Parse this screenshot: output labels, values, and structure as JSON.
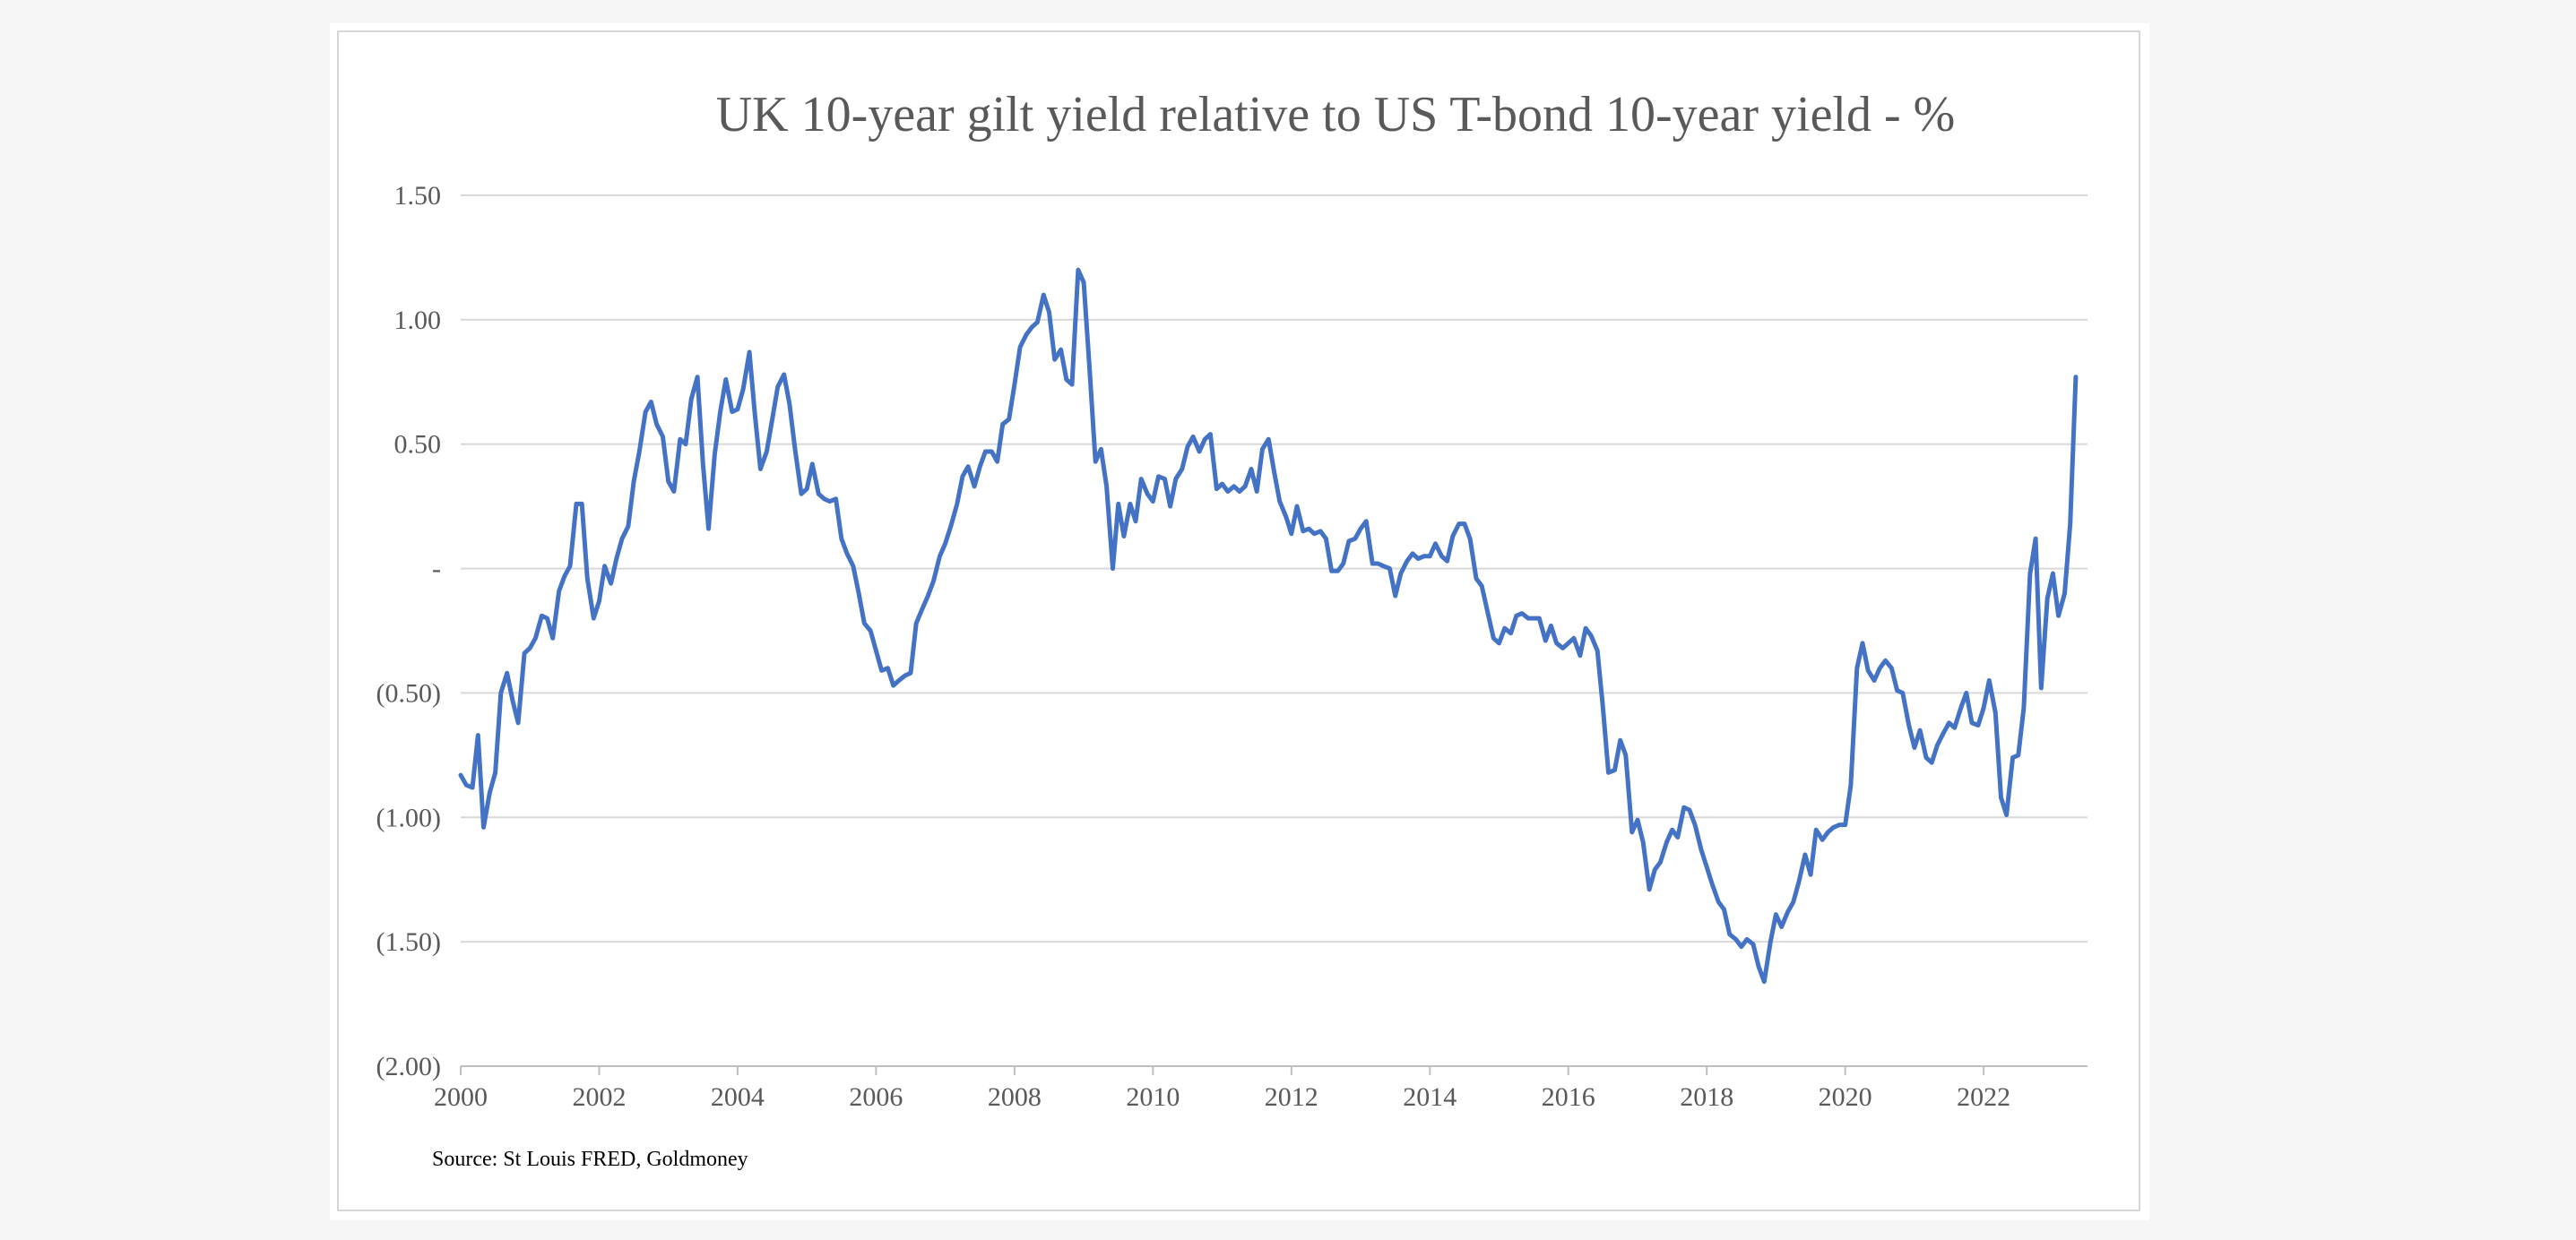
{
  "chart_data": {
    "type": "line",
    "title": "UK 10-year gilt yield relative to US T-bond 10-year yield - %",
    "xlabel": "",
    "ylabel": "",
    "source": "Source: St Louis FRED, Goldmoney",
    "xlim": [
      2000,
      2023.5
    ],
    "ylim": [
      -2.0,
      1.5
    ],
    "grid": true,
    "legend": "none",
    "y_ticks": [
      {
        "value": 1.5,
        "label": "1.50"
      },
      {
        "value": 1.0,
        "label": "1.00"
      },
      {
        "value": 0.5,
        "label": "0.50"
      },
      {
        "value": 0.0,
        "label": "-"
      },
      {
        "value": -0.5,
        "label": "(0.50)"
      },
      {
        "value": -1.0,
        "label": "(1.00)"
      },
      {
        "value": -1.5,
        "label": "(1.50)"
      },
      {
        "value": -2.0,
        "label": "(2.00)"
      }
    ],
    "x_ticks": [
      {
        "value": 2000,
        "label": "2000"
      },
      {
        "value": 2002,
        "label": "2002"
      },
      {
        "value": 2004,
        "label": "2004"
      },
      {
        "value": 2006,
        "label": "2006"
      },
      {
        "value": 2008,
        "label": "2008"
      },
      {
        "value": 2010,
        "label": "2010"
      },
      {
        "value": 2012,
        "label": "2012"
      },
      {
        "value": 2014,
        "label": "2014"
      },
      {
        "value": 2016,
        "label": "2016"
      },
      {
        "value": 2018,
        "label": "2018"
      },
      {
        "value": 2020,
        "label": "2020"
      },
      {
        "value": 2022,
        "label": "2022"
      }
    ],
    "colors": {
      "line": "#4472c4",
      "grid": "#d9d9d9",
      "axis": "#bfbfbf",
      "text": "#595959"
    },
    "series": [
      {
        "name": "",
        "points": [
          [
            2000.0,
            -0.83
          ],
          [
            2000.08,
            -0.87
          ],
          [
            2000.17,
            -0.88
          ],
          [
            2000.25,
            -0.67
          ],
          [
            2000.33,
            -1.04
          ],
          [
            2000.42,
            -0.9
          ],
          [
            2000.5,
            -0.82
          ],
          [
            2000.58,
            -0.5
          ],
          [
            2000.67,
            -0.42
          ],
          [
            2000.75,
            -0.53
          ],
          [
            2000.83,
            -0.62
          ],
          [
            2000.92,
            -0.34
          ],
          [
            2001.0,
            -0.32
          ],
          [
            2001.08,
            -0.28
          ],
          [
            2001.17,
            -0.19
          ],
          [
            2001.25,
            -0.2
          ],
          [
            2001.33,
            -0.28
          ],
          [
            2001.42,
            -0.09
          ],
          [
            2001.5,
            -0.03
          ],
          [
            2001.58,
            0.01
          ],
          [
            2001.67,
            0.26
          ],
          [
            2001.75,
            0.26
          ],
          [
            2001.83,
            -0.04
          ],
          [
            2001.92,
            -0.2
          ],
          [
            2002.0,
            -0.13
          ],
          [
            2002.08,
            0.01
          ],
          [
            2002.17,
            -0.06
          ],
          [
            2002.25,
            0.04
          ],
          [
            2002.33,
            0.12
          ],
          [
            2002.42,
            0.17
          ],
          [
            2002.5,
            0.35
          ],
          [
            2002.58,
            0.47
          ],
          [
            2002.67,
            0.63
          ],
          [
            2002.75,
            0.67
          ],
          [
            2002.83,
            0.58
          ],
          [
            2002.92,
            0.53
          ],
          [
            2003.0,
            0.35
          ],
          [
            2003.08,
            0.31
          ],
          [
            2003.17,
            0.52
          ],
          [
            2003.25,
            0.5
          ],
          [
            2003.33,
            0.68
          ],
          [
            2003.42,
            0.77
          ],
          [
            2003.5,
            0.42
          ],
          [
            2003.58,
            0.16
          ],
          [
            2003.67,
            0.46
          ],
          [
            2003.75,
            0.63
          ],
          [
            2003.83,
            0.76
          ],
          [
            2003.92,
            0.63
          ],
          [
            2004.0,
            0.64
          ],
          [
            2004.08,
            0.72
          ],
          [
            2004.17,
            0.87
          ],
          [
            2004.25,
            0.62
          ],
          [
            2004.33,
            0.4
          ],
          [
            2004.42,
            0.47
          ],
          [
            2004.5,
            0.6
          ],
          [
            2004.58,
            0.73
          ],
          [
            2004.67,
            0.78
          ],
          [
            2004.75,
            0.66
          ],
          [
            2004.83,
            0.48
          ],
          [
            2004.92,
            0.3
          ],
          [
            2005.0,
            0.32
          ],
          [
            2005.08,
            0.42
          ],
          [
            2005.17,
            0.3
          ],
          [
            2005.25,
            0.28
          ],
          [
            2005.33,
            0.27
          ],
          [
            2005.42,
            0.28
          ],
          [
            2005.5,
            0.12
          ],
          [
            2005.58,
            0.06
          ],
          [
            2005.67,
            0.01
          ],
          [
            2005.75,
            -0.1
          ],
          [
            2005.83,
            -0.22
          ],
          [
            2005.92,
            -0.25
          ],
          [
            2006.0,
            -0.33
          ],
          [
            2006.08,
            -0.41
          ],
          [
            2006.17,
            -0.4
          ],
          [
            2006.25,
            -0.47
          ],
          [
            2006.33,
            -0.45
          ],
          [
            2006.42,
            -0.43
          ],
          [
            2006.5,
            -0.42
          ],
          [
            2006.58,
            -0.22
          ],
          [
            2006.67,
            -0.16
          ],
          [
            2006.75,
            -0.11
          ],
          [
            2006.83,
            -0.05
          ],
          [
            2006.92,
            0.05
          ],
          [
            2007.0,
            0.1
          ],
          [
            2007.08,
            0.17
          ],
          [
            2007.17,
            0.26
          ],
          [
            2007.25,
            0.37
          ],
          [
            2007.33,
            0.41
          ],
          [
            2007.42,
            0.33
          ],
          [
            2007.5,
            0.41
          ],
          [
            2007.58,
            0.47
          ],
          [
            2007.67,
            0.47
          ],
          [
            2007.75,
            0.43
          ],
          [
            2007.83,
            0.58
          ],
          [
            2007.92,
            0.6
          ],
          [
            2008.0,
            0.74
          ],
          [
            2008.08,
            0.89
          ],
          [
            2008.17,
            0.94
          ],
          [
            2008.25,
            0.97
          ],
          [
            2008.33,
            0.99
          ],
          [
            2008.42,
            1.1
          ],
          [
            2008.5,
            1.03
          ],
          [
            2008.58,
            0.84
          ],
          [
            2008.67,
            0.88
          ],
          [
            2008.75,
            0.76
          ],
          [
            2008.83,
            0.74
          ],
          [
            2008.92,
            1.2
          ],
          [
            2009.0,
            1.15
          ],
          [
            2009.08,
            0.82
          ],
          [
            2009.17,
            0.43
          ],
          [
            2009.25,
            0.48
          ],
          [
            2009.33,
            0.33
          ],
          [
            2009.42,
            0.0
          ],
          [
            2009.5,
            0.26
          ],
          [
            2009.58,
            0.13
          ],
          [
            2009.67,
            0.26
          ],
          [
            2009.75,
            0.19
          ],
          [
            2009.83,
            0.36
          ],
          [
            2009.92,
            0.3
          ],
          [
            2010.0,
            0.27
          ],
          [
            2010.08,
            0.37
          ],
          [
            2010.17,
            0.36
          ],
          [
            2010.25,
            0.25
          ],
          [
            2010.33,
            0.36
          ],
          [
            2010.42,
            0.4
          ],
          [
            2010.5,
            0.49
          ],
          [
            2010.58,
            0.53
          ],
          [
            2010.67,
            0.47
          ],
          [
            2010.75,
            0.52
          ],
          [
            2010.83,
            0.54
          ],
          [
            2010.92,
            0.32
          ],
          [
            2011.0,
            0.34
          ],
          [
            2011.08,
            0.31
          ],
          [
            2011.17,
            0.33
          ],
          [
            2011.25,
            0.31
          ],
          [
            2011.33,
            0.33
          ],
          [
            2011.42,
            0.4
          ],
          [
            2011.5,
            0.31
          ],
          [
            2011.58,
            0.48
          ],
          [
            2011.67,
            0.52
          ],
          [
            2011.75,
            0.39
          ],
          [
            2011.83,
            0.27
          ],
          [
            2011.92,
            0.21
          ],
          [
            2012.0,
            0.14
          ],
          [
            2012.08,
            0.25
          ],
          [
            2012.17,
            0.15
          ],
          [
            2012.25,
            0.16
          ],
          [
            2012.33,
            0.14
          ],
          [
            2012.42,
            0.15
          ],
          [
            2012.5,
            0.12
          ],
          [
            2012.58,
            -0.01
          ],
          [
            2012.67,
            -0.01
          ],
          [
            2012.75,
            0.02
          ],
          [
            2012.83,
            0.11
          ],
          [
            2012.92,
            0.12
          ],
          [
            2013.0,
            0.16
          ],
          [
            2013.08,
            0.19
          ],
          [
            2013.17,
            0.02
          ],
          [
            2013.25,
            0.02
          ],
          [
            2013.33,
            0.01
          ],
          [
            2013.42,
            0.0
          ],
          [
            2013.5,
            -0.11
          ],
          [
            2013.58,
            -0.02
          ],
          [
            2013.67,
            0.03
          ],
          [
            2013.75,
            0.06
          ],
          [
            2013.83,
            0.04
          ],
          [
            2013.92,
            0.05
          ],
          [
            2014.0,
            0.05
          ],
          [
            2014.08,
            0.1
          ],
          [
            2014.17,
            0.05
          ],
          [
            2014.25,
            0.03
          ],
          [
            2014.33,
            0.13
          ],
          [
            2014.42,
            0.18
          ],
          [
            2014.5,
            0.18
          ],
          [
            2014.58,
            0.12
          ],
          [
            2014.67,
            -0.04
          ],
          [
            2014.75,
            -0.07
          ],
          [
            2014.83,
            -0.17
          ],
          [
            2014.92,
            -0.28
          ],
          [
            2015.0,
            -0.3
          ],
          [
            2015.08,
            -0.24
          ],
          [
            2015.17,
            -0.26
          ],
          [
            2015.25,
            -0.19
          ],
          [
            2015.33,
            -0.18
          ],
          [
            2015.42,
            -0.2
          ],
          [
            2015.5,
            -0.2
          ],
          [
            2015.58,
            -0.2
          ],
          [
            2015.67,
            -0.29
          ],
          [
            2015.75,
            -0.23
          ],
          [
            2015.83,
            -0.3
          ],
          [
            2015.92,
            -0.32
          ],
          [
            2016.0,
            -0.3
          ],
          [
            2016.08,
            -0.28
          ],
          [
            2016.17,
            -0.35
          ],
          [
            2016.25,
            -0.24
          ],
          [
            2016.33,
            -0.27
          ],
          [
            2016.42,
            -0.33
          ],
          [
            2016.5,
            -0.56
          ],
          [
            2016.58,
            -0.82
          ],
          [
            2016.67,
            -0.81
          ],
          [
            2016.75,
            -0.69
          ],
          [
            2016.83,
            -0.75
          ],
          [
            2016.92,
            -1.06
          ],
          [
            2017.0,
            -1.01
          ],
          [
            2017.08,
            -1.1
          ],
          [
            2017.17,
            -1.29
          ],
          [
            2017.25,
            -1.21
          ],
          [
            2017.33,
            -1.18
          ],
          [
            2017.42,
            -1.1
          ],
          [
            2017.5,
            -1.05
          ],
          [
            2017.58,
            -1.08
          ],
          [
            2017.67,
            -0.96
          ],
          [
            2017.75,
            -0.97
          ],
          [
            2017.83,
            -1.03
          ],
          [
            2017.92,
            -1.13
          ],
          [
            2018.0,
            -1.2
          ],
          [
            2018.08,
            -1.27
          ],
          [
            2018.17,
            -1.34
          ],
          [
            2018.25,
            -1.37
          ],
          [
            2018.33,
            -1.47
          ],
          [
            2018.42,
            -1.49
          ],
          [
            2018.5,
            -1.52
          ],
          [
            2018.58,
            -1.49
          ],
          [
            2018.67,
            -1.51
          ],
          [
            2018.75,
            -1.6
          ],
          [
            2018.83,
            -1.66
          ],
          [
            2018.92,
            -1.5
          ],
          [
            2019.0,
            -1.39
          ],
          [
            2019.08,
            -1.44
          ],
          [
            2019.17,
            -1.38
          ],
          [
            2019.25,
            -1.34
          ],
          [
            2019.33,
            -1.26
          ],
          [
            2019.42,
            -1.15
          ],
          [
            2019.5,
            -1.23
          ],
          [
            2019.58,
            -1.05
          ],
          [
            2019.67,
            -1.09
          ],
          [
            2019.75,
            -1.06
          ],
          [
            2019.83,
            -1.04
          ],
          [
            2019.92,
            -1.03
          ],
          [
            2020.0,
            -1.03
          ],
          [
            2020.08,
            -0.87
          ],
          [
            2020.17,
            -0.4
          ],
          [
            2020.25,
            -0.3
          ],
          [
            2020.33,
            -0.41
          ],
          [
            2020.42,
            -0.45
          ],
          [
            2020.5,
            -0.4
          ],
          [
            2020.58,
            -0.37
          ],
          [
            2020.67,
            -0.4
          ],
          [
            2020.75,
            -0.49
          ],
          [
            2020.83,
            -0.5
          ],
          [
            2020.92,
            -0.63
          ],
          [
            2021.0,
            -0.72
          ],
          [
            2021.08,
            -0.65
          ],
          [
            2021.17,
            -0.76
          ],
          [
            2021.25,
            -0.78
          ],
          [
            2021.33,
            -0.71
          ],
          [
            2021.42,
            -0.66
          ],
          [
            2021.5,
            -0.62
          ],
          [
            2021.58,
            -0.64
          ],
          [
            2021.67,
            -0.56
          ],
          [
            2021.75,
            -0.5
          ],
          [
            2021.83,
            -0.62
          ],
          [
            2021.92,
            -0.63
          ],
          [
            2022.0,
            -0.56
          ],
          [
            2022.08,
            -0.45
          ],
          [
            2022.17,
            -0.58
          ],
          [
            2022.25,
            -0.92
          ],
          [
            2022.33,
            -0.99
          ],
          [
            2022.42,
            -0.76
          ],
          [
            2022.5,
            -0.75
          ],
          [
            2022.58,
            -0.56
          ],
          [
            2022.67,
            -0.02
          ],
          [
            2022.75,
            0.12
          ],
          [
            2022.83,
            -0.48
          ],
          [
            2022.92,
            -0.12
          ],
          [
            2023.0,
            -0.02
          ],
          [
            2023.08,
            -0.19
          ],
          [
            2023.17,
            -0.1
          ],
          [
            2023.25,
            0.18
          ],
          [
            2023.33,
            0.77
          ]
        ]
      }
    ]
  }
}
